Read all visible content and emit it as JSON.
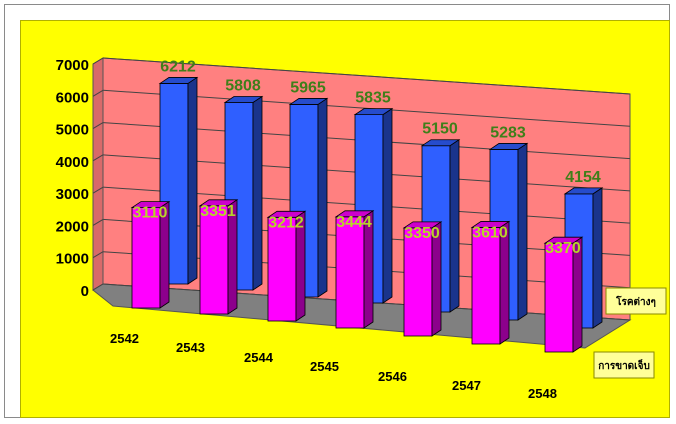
{
  "chart_data": {
    "type": "bar",
    "style": "3d-clustered-columns",
    "categories": [
      "2542",
      "2543",
      "2544",
      "2545",
      "2546",
      "2547",
      "2548"
    ],
    "series": [
      {
        "name": "โรคต่างๆ",
        "color": "#2f5fff",
        "values": [
          6212,
          5808,
          5965,
          5835,
          5150,
          5283,
          4154
        ]
      },
      {
        "name": "การขาดเจ็บ",
        "color": "#ff00ff",
        "values": [
          3110,
          3351,
          3212,
          3444,
          3350,
          3610,
          3370
        ]
      }
    ],
    "ylim": [
      0,
      7000
    ],
    "yticks": [
      "0",
      "1000",
      "2000",
      "3000",
      "4000",
      "5000",
      "6000",
      "7000"
    ],
    "grid": true,
    "legend_position": "right",
    "colors": {
      "background": "#ffff00",
      "wall": "#ff8080",
      "floor": "#808080"
    }
  }
}
